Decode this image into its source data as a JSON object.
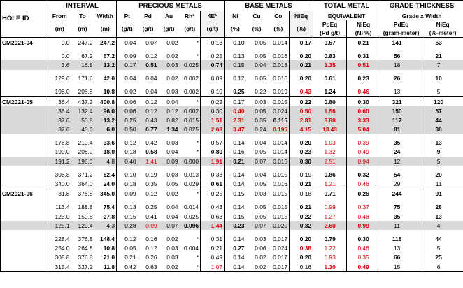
{
  "header": {
    "groups": {
      "interval": "INTERVAL",
      "precious": "PRECIOUS METALS",
      "base": "BASE METALS",
      "total_line1": "TOTAL METAL",
      "total_line2": "EQUIVALENT",
      "grade_line1": "GRADE-THICKNESS",
      "grade_line2": "Grade x Width"
    },
    "hole_id": "HOLE ID",
    "cols": [
      {
        "top": "From",
        "bottom": "(m)"
      },
      {
        "top": "To",
        "bottom": "(m)"
      },
      {
        "top": "Width",
        "bottom": "(m)"
      },
      {
        "top": "Pt",
        "bottom": "(g/t)"
      },
      {
        "top": "Pd",
        "bottom": "(g/t)"
      },
      {
        "top": "Au",
        "bottom": "(g/t)"
      },
      {
        "top": "Rh*",
        "bottom": "(g/t)"
      },
      {
        "top": "4E*",
        "bottom": "(g/t)"
      },
      {
        "top": "Ni",
        "bottom": "(%)"
      },
      {
        "top": "Cu",
        "bottom": "(%)"
      },
      {
        "top": "Co",
        "bottom": "(%)"
      },
      {
        "top": "NiEq",
        "bottom": "(%)"
      },
      {
        "top": "PdEq",
        "bottom": "(Pd g/t)"
      },
      {
        "top": "NiEq",
        "bottom": "(Ni %)"
      },
      {
        "top": "PdEq",
        "bottom": "(gram-meter)"
      },
      {
        "top": "NiEq",
        "bottom": "(%-meter)"
      }
    ]
  },
  "holes": [
    {
      "id": "CM2021-04",
      "rows": [
        {
          "shade": false,
          "gap": false,
          "v": [
            "0.0",
            "247.2",
            "247.2",
            "0.04",
            "0.07",
            "0.02",
            "*",
            "0.13",
            "0.10",
            "0.05",
            "0.014",
            "0.17",
            "0.57",
            "0.21",
            "141",
            "53"
          ],
          "fmt": [
            "",
            "",
            "b",
            "",
            "",
            "",
            "",
            "",
            "",
            "",
            "",
            "b",
            "b",
            "b",
            "b",
            "b"
          ]
        },
        {
          "gap": true
        },
        {
          "shade": false,
          "gap": false,
          "v": [
            "0.0",
            "67.2",
            "67.2",
            "0.09",
            "0.12",
            "0.02",
            "*",
            "0.25",
            "0.13",
            "0.05",
            "0.016",
            "0.20",
            "0.83",
            "0.31",
            "56",
            "21"
          ],
          "fmt": [
            "",
            "",
            "b",
            "",
            "",
            "",
            "",
            "",
            "",
            "",
            "",
            "b",
            "b",
            "b",
            "b",
            "b"
          ]
        },
        {
          "shade": true,
          "gap": false,
          "v": [
            "3.6",
            "16.8",
            "13.2",
            "0.17",
            "0.51",
            "0.03",
            "0.025",
            "0.74",
            "0.15",
            "0.04",
            "0.018",
            "0.21",
            "1.35",
            "0.51",
            "18",
            "7"
          ],
          "fmt": [
            "",
            "",
            "b",
            "",
            "b",
            "",
            "",
            "b",
            "",
            "",
            "",
            "b",
            "rb",
            "rb",
            "",
            ""
          ]
        },
        {
          "gap": true
        },
        {
          "shade": false,
          "gap": false,
          "v": [
            "129.6",
            "171.6",
            "42.0",
            "0.04",
            "0.04",
            "0.02",
            "0.002",
            "0.09",
            "0.12",
            "0.05",
            "0.016",
            "0.20",
            "0.61",
            "0.23",
            "26",
            "10"
          ],
          "fmt": [
            "",
            "",
            "b",
            "",
            "",
            "",
            "",
            "",
            "",
            "",
            "",
            "b",
            "b",
            "b",
            "b",
            "b"
          ]
        },
        {
          "gap": true
        },
        {
          "shade": false,
          "gap": false,
          "v": [
            "198.0",
            "208.8",
            "10.8",
            "0.02",
            "0.04",
            "0.03",
            "0.002",
            "0.10",
            "0.25",
            "0.22",
            "0.019",
            "0.43",
            "1.24",
            "0.46",
            "13",
            "5"
          ],
          "fmt": [
            "",
            "",
            "b",
            "",
            "",
            "",
            "",
            "",
            "b",
            "",
            "",
            "rb",
            "b",
            "rb",
            "",
            ""
          ]
        }
      ]
    },
    {
      "id": "CM2021-05",
      "rows": [
        {
          "shade": false,
          "gap": false,
          "v": [
            "36.4",
            "437.2",
            "400.8",
            "0.06",
            "0.12",
            "0.04",
            "*",
            "0.22",
            "0.17",
            "0.03",
            "0.015",
            "0.22",
            "0.80",
            "0.30",
            "321",
            "120"
          ],
          "fmt": [
            "",
            "",
            "b",
            "",
            "",
            "",
            "",
            "",
            "",
            "",
            "",
            "b",
            "b",
            "b",
            "b",
            "b"
          ]
        },
        {
          "shade": true,
          "gap": false,
          "v": [
            "36.4",
            "132.4",
            "96.0",
            "0.06",
            "0.12",
            "0.12",
            "0.002",
            "0.30",
            "0.40",
            "0.05",
            "0.024",
            "0.50",
            "1.56",
            "0.60",
            "150",
            "57"
          ],
          "fmt": [
            "",
            "",
            "b",
            "",
            "",
            "",
            "",
            "",
            "rb",
            "",
            "",
            "rb",
            "rb",
            "rb",
            "b",
            "b"
          ]
        },
        {
          "shade": true,
          "gap": false,
          "v": [
            "37.6",
            "50.8",
            "13.2",
            "0.25",
            "0.43",
            "0.82",
            "0.015",
            "1.51",
            "2.31",
            "0.35",
            "0.115",
            "2.81",
            "8.88",
            "3.33",
            "117",
            "44"
          ],
          "fmt": [
            "",
            "",
            "b",
            "",
            "",
            "",
            "",
            "rb",
            "rb",
            "",
            "b",
            "rb",
            "rb",
            "rb",
            "b",
            "b"
          ]
        },
        {
          "shade": true,
          "gap": false,
          "v": [
            "37.6",
            "43.6",
            "6.0",
            "0.50",
            "0.77",
            "1.34",
            "0.025",
            "2.63",
            "3.47",
            "0.24",
            "0.195",
            "4.15",
            "13.43",
            "5.04",
            "81",
            "30"
          ],
          "fmt": [
            "",
            "",
            "b",
            "",
            "b",
            "b",
            "",
            "rb",
            "rb",
            "",
            "rb",
            "rb",
            "rb",
            "rb",
            "b",
            "b"
          ]
        },
        {
          "gap": true
        },
        {
          "shade": false,
          "gap": false,
          "v": [
            "176.8",
            "210.4",
            "33.6",
            "0.12",
            "0.42",
            "0.03",
            "*",
            "0.57",
            "0.14",
            "0.04",
            "0.014",
            "0.20",
            "1.03",
            "0.39",
            "35",
            "13"
          ],
          "fmt": [
            "",
            "",
            "b",
            "",
            "",
            "",
            "",
            "",
            "",
            "",
            "",
            "b",
            "r",
            "r",
            "b",
            "b"
          ]
        },
        {
          "shade": false,
          "gap": false,
          "v": [
            "190.0",
            "208.0",
            "18.0",
            "0.18",
            "0.58",
            "0.04",
            "*",
            "0.80",
            "0.16",
            "0.05",
            "0.014",
            "0.23",
            "1.32",
            "0.49",
            "24",
            "9"
          ],
          "fmt": [
            "",
            "",
            "b",
            "",
            "b",
            "",
            "",
            "b",
            "",
            "",
            "",
            "b",
            "r",
            "r",
            "b",
            "b"
          ]
        },
        {
          "shade": true,
          "gap": false,
          "v": [
            "191.2",
            "196.0",
            "4.8",
            "0.40",
            "1.41",
            "0.09",
            "0.000",
            "1.91",
            "0.21",
            "0.07",
            "0.016",
            "0.30",
            "2.51",
            "0.94",
            "12",
            "5"
          ],
          "fmt": [
            "",
            "",
            "",
            "",
            "r",
            "",
            "",
            "rb",
            "b",
            "",
            "",
            "b",
            "r",
            "r",
            "",
            ""
          ]
        },
        {
          "gap": true
        },
        {
          "shade": false,
          "gap": false,
          "v": [
            "308.8",
            "371.2",
            "62.4",
            "0.10",
            "0.19",
            "0.03",
            "0.013",
            "0.33",
            "0.14",
            "0.04",
            "0.015",
            "0.19",
            "0.86",
            "0.32",
            "54",
            "20"
          ],
          "fmt": [
            "",
            "",
            "b",
            "",
            "",
            "",
            "",
            "",
            "",
            "",
            "",
            "",
            "b",
            "b",
            "b",
            "b"
          ]
        },
        {
          "shade": false,
          "gap": false,
          "v": [
            "340.0",
            "364.0",
            "24.0",
            "0.18",
            "0.35",
            "0.05",
            "0.029",
            "0.61",
            "0.14",
            "0.05",
            "0.016",
            "0.21",
            "1.21",
            "0.46",
            "29",
            "11"
          ],
          "fmt": [
            "",
            "",
            "b",
            "",
            "",
            "",
            "",
            "b",
            "",
            "",
            "",
            "b",
            "r",
            "r",
            "",
            ""
          ]
        }
      ]
    },
    {
      "id": "CM2021-06",
      "rows": [
        {
          "shade": false,
          "gap": false,
          "v": [
            "31.8",
            "376.8",
            "345.0",
            "0.09",
            "0.12",
            "0.02",
            "*",
            "0.25",
            "0.15",
            "0.03",
            "0.015",
            "0.18",
            "0.71",
            "0.26",
            "244",
            "91"
          ],
          "fmt": [
            "",
            "",
            "b",
            "",
            "",
            "",
            "",
            "",
            "",
            "",
            "",
            "",
            "b",
            "b",
            "b",
            "b"
          ]
        },
        {
          "gap": true
        },
        {
          "shade": false,
          "gap": false,
          "v": [
            "113.4",
            "188.8",
            "75.4",
            "0.13",
            "0.25",
            "0.04",
            "0.014",
            "0.43",
            "0.14",
            "0.05",
            "0.015",
            "0.21",
            "0.99",
            "0.37",
            "75",
            "28"
          ],
          "fmt": [
            "",
            "",
            "b",
            "",
            "",
            "",
            "",
            "",
            "",
            "",
            "",
            "b",
            "r",
            "r",
            "b",
            "b"
          ]
        },
        {
          "shade": false,
          "gap": false,
          "v": [
            "123.0",
            "150.8",
            "27.8",
            "0.15",
            "0.41",
            "0.04",
            "0.025",
            "0.63",
            "0.15",
            "0.05",
            "0.015",
            "0.22",
            "1.27",
            "0.48",
            "35",
            "13"
          ],
          "fmt": [
            "",
            "",
            "b",
            "",
            "",
            "",
            "",
            "",
            "",
            "",
            "",
            "b",
            "r",
            "r",
            "b",
            "b"
          ]
        },
        {
          "shade": true,
          "gap": false,
          "v": [
            "125.1",
            "129.4",
            "4.3",
            "0.28",
            "0.99",
            "0.07",
            "0.096",
            "1.44",
            "0.23",
            "0.07",
            "0.020",
            "0.32",
            "2.60",
            "0.98",
            "11",
            "4"
          ],
          "fmt": [
            "",
            "",
            "",
            "",
            "r",
            "",
            "b",
            "rb",
            "b",
            "",
            "",
            "b",
            "rb",
            "rb",
            "",
            ""
          ]
        },
        {
          "gap": true
        },
        {
          "shade": false,
          "gap": false,
          "v": [
            "228.4",
            "376.8",
            "148.4",
            "0.12",
            "0.16",
            "0.02",
            "*",
            "0.31",
            "0.14",
            "0.03",
            "0.017",
            "0.20",
            "0.79",
            "0.30",
            "118",
            "44"
          ],
          "fmt": [
            "",
            "",
            "b",
            "",
            "",
            "",
            "",
            "",
            "",
            "",
            "",
            "b",
            "b",
            "b",
            "b",
            "b"
          ]
        },
        {
          "shade": false,
          "gap": false,
          "v": [
            "254.0",
            "264.8",
            "10.8",
            "0.05",
            "0.12",
            "0.03",
            "0.004",
            "0.21",
            "0.27",
            "0.06",
            "0.024",
            "0.38",
            "1.22",
            "0.46",
            "13",
            "5"
          ],
          "fmt": [
            "",
            "",
            "b",
            "",
            "",
            "",
            "",
            "",
            "b",
            "",
            "",
            "rb",
            "r",
            "r",
            "",
            ""
          ]
        },
        {
          "shade": false,
          "gap": false,
          "v": [
            "305.8",
            "376.8",
            "71.0",
            "0.21",
            "0.26",
            "0.03",
            "*",
            "0.49",
            "0.14",
            "0.02",
            "0.017",
            "0.20",
            "0.93",
            "0.35",
            "66",
            "25"
          ],
          "fmt": [
            "",
            "",
            "b",
            "",
            "",
            "",
            "",
            "",
            "",
            "",
            "",
            "b",
            "r",
            "r",
            "b",
            "b"
          ]
        },
        {
          "shade": false,
          "gap": false,
          "v": [
            "315.4",
            "327.2",
            "11.8",
            "0.42",
            "0.63",
            "0.02",
            "*",
            "1.07",
            "0.14",
            "0.02",
            "0.017",
            "0.16",
            "1.30",
            "0.49",
            "15",
            "6"
          ],
          "fmt": [
            "",
            "",
            "b",
            "",
            "",
            "",
            "",
            "r",
            "",
            "",
            "",
            "",
            "rb",
            "rb",
            "",
            ""
          ]
        }
      ]
    }
  ]
}
